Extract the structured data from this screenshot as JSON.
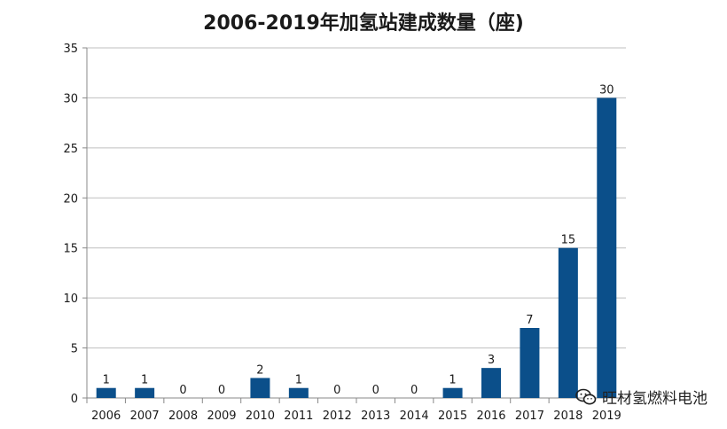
{
  "chart_data": {
    "type": "bar",
    "title": "2006-2019年加氢站建成数量（座)",
    "xlabel": "",
    "ylabel": "",
    "categories": [
      "2006",
      "2007",
      "2008",
      "2009",
      "2010",
      "2011",
      "2012",
      "2013",
      "2014",
      "2015",
      "2016",
      "2017",
      "2018",
      "2019"
    ],
    "values": [
      1,
      1,
      0,
      0,
      2,
      1,
      0,
      0,
      0,
      1,
      3,
      7,
      15,
      30
    ],
    "ylim": [
      0,
      35
    ],
    "yticks": [
      0,
      5,
      10,
      15,
      20,
      25,
      30,
      35
    ],
    "grid": true,
    "bar_color": "#0b4f8a",
    "data_labels": true
  },
  "watermark": {
    "text": "旺材氢燃料电池",
    "icon": "wechat-icon"
  }
}
